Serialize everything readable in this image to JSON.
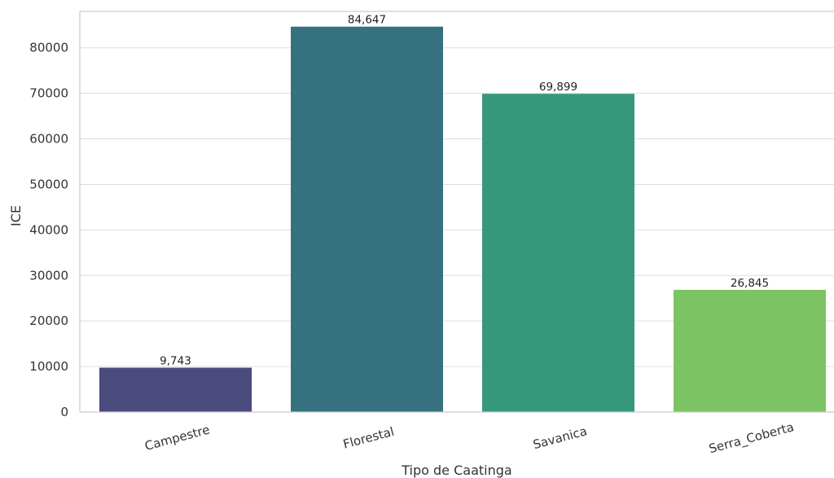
{
  "chart_data": {
    "type": "bar",
    "title": "",
    "xlabel": "Tipo de Caatinga",
    "ylabel": "ICE",
    "categories": [
      "Campestre",
      "Florestal",
      "Savanica",
      "Serra_Coberta"
    ],
    "values": [
      9743,
      84647,
      69899,
      26845
    ],
    "data_labels": [
      "9,743",
      "84,647",
      "69,899",
      "26,845"
    ],
    "colors": [
      "#4a4a7e",
      "#367180",
      "#35987b",
      "#7cc363"
    ],
    "yticks": [
      "0",
      "10000",
      "20000",
      "30000",
      "40000",
      "50000",
      "60000",
      "70000",
      "80000"
    ],
    "ylim": [
      0,
      88000
    ],
    "grid": "horizontal",
    "legend": "none"
  }
}
